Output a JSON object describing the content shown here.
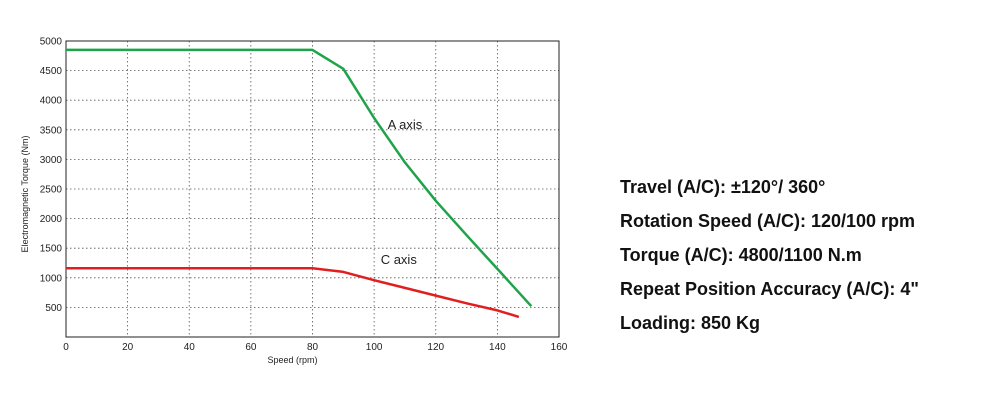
{
  "chart_data": {
    "type": "line",
    "xlabel": "Speed (rpm)",
    "ylabel": "Electromagnetic Torque (Nm)",
    "xlim": [
      0,
      160
    ],
    "ylim": [
      0,
      5000
    ],
    "x_ticks": [
      0,
      20,
      40,
      60,
      80,
      100,
      120,
      140,
      160
    ],
    "y_ticks": [
      500,
      1000,
      1500,
      2000,
      2500,
      3000,
      3500,
      4000,
      4500,
      5000
    ],
    "grid": true,
    "series": [
      {
        "name": "A axis",
        "color": "#1fa34a",
        "points": [
          [
            0,
            4850
          ],
          [
            80,
            4850
          ],
          [
            90,
            4530
          ],
          [
            100,
            3700
          ],
          [
            110,
            2950
          ],
          [
            120,
            2300
          ],
          [
            130,
            1720
          ],
          [
            140,
            1150
          ],
          [
            151,
            520
          ]
        ]
      },
      {
        "name": "C axis",
        "color": "#e02020",
        "points": [
          [
            0,
            1160
          ],
          [
            80,
            1160
          ],
          [
            90,
            1100
          ],
          [
            100,
            960
          ],
          [
            110,
            830
          ],
          [
            120,
            700
          ],
          [
            130,
            570
          ],
          [
            140,
            450
          ],
          [
            147,
            340
          ]
        ]
      }
    ]
  },
  "specs": [
    "Travel (A/C):  ±120°/ 360°",
    "Rotation Speed (A/C):  120/100 rpm",
    "Torque (A/C):  4800/1100 N.m",
    "Repeat Position Accuracy (A/C):  4\"",
    "Loading:  850 Kg"
  ]
}
